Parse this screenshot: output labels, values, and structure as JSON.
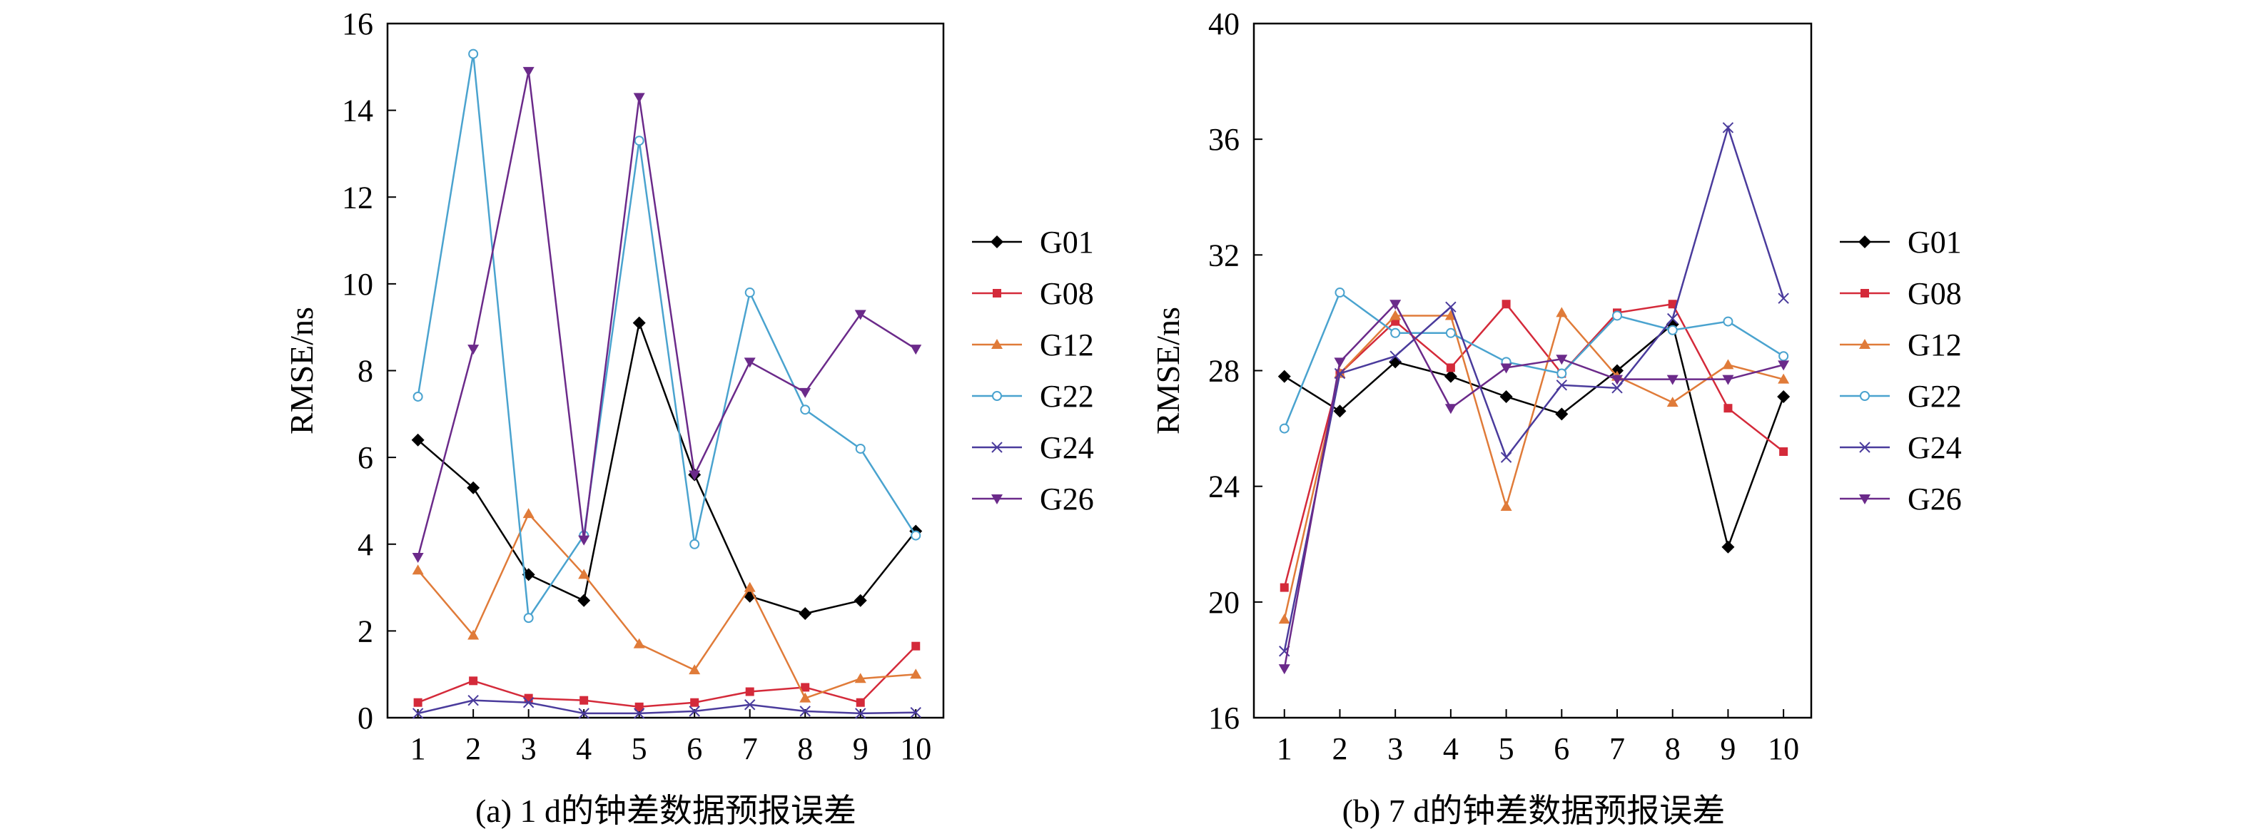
{
  "figure": {
    "panels": [
      {
        "caption": "(a) 1 d的钟差数据预报误差"
      },
      {
        "caption": "(b) 7 d的钟差数据预报误差"
      }
    ]
  },
  "colors": {
    "G01": "#000000",
    "G08": "#d42a3a",
    "G12": "#e07b39",
    "G22": "#4aa3cf",
    "G24": "#4a3b9c",
    "G26": "#6b2a8a"
  },
  "chart_data": [
    {
      "type": "line",
      "title": "(a) 1 d的钟差数据预报误差",
      "xlabel": "",
      "ylabel": "RMSE/ns",
      "ylim": [
        0,
        16
      ],
      "yticks": [
        0,
        2,
        4,
        6,
        8,
        10,
        12,
        14,
        16
      ],
      "categories": [
        "1",
        "2",
        "3",
        "4",
        "5",
        "6",
        "7",
        "8",
        "9",
        "10"
      ],
      "legend_position": "right",
      "grid": false,
      "series": [
        {
          "name": "G01",
          "marker": "diamond",
          "values": [
            6.4,
            5.3,
            3.3,
            2.7,
            9.1,
            5.6,
            2.8,
            2.4,
            2.7,
            4.3
          ]
        },
        {
          "name": "G08",
          "marker": "square",
          "values": [
            0.35,
            0.85,
            0.45,
            0.4,
            0.25,
            0.35,
            0.6,
            0.7,
            0.35,
            1.65
          ]
        },
        {
          "name": "G12",
          "marker": "triangle",
          "values": [
            3.4,
            1.9,
            4.7,
            3.3,
            1.7,
            1.1,
            3.0,
            0.45,
            0.9,
            1.0
          ]
        },
        {
          "name": "G22",
          "marker": "circle",
          "values": [
            7.4,
            15.3,
            2.3,
            4.2,
            13.3,
            4.0,
            9.8,
            7.1,
            6.2,
            4.2
          ]
        },
        {
          "name": "G24",
          "marker": "x",
          "values": [
            0.1,
            0.4,
            0.35,
            0.1,
            0.1,
            0.15,
            0.3,
            0.15,
            0.1,
            0.12
          ]
        },
        {
          "name": "G26",
          "marker": "triangle-down",
          "values": [
            3.7,
            8.5,
            14.9,
            4.1,
            14.3,
            5.6,
            8.2,
            7.5,
            9.3,
            8.5
          ]
        }
      ]
    },
    {
      "type": "line",
      "title": "(b) 7 d的钟差数据预报误差",
      "xlabel": "",
      "ylabel": "RMSE/ns",
      "ylim": [
        16,
        40
      ],
      "yticks": [
        16,
        20,
        24,
        28,
        32,
        36,
        40
      ],
      "categories": [
        "1",
        "2",
        "3",
        "4",
        "5",
        "6",
        "7",
        "8",
        "9",
        "10"
      ],
      "legend_position": "right",
      "grid": false,
      "series": [
        {
          "name": "G01",
          "marker": "diamond",
          "values": [
            27.8,
            26.6,
            28.3,
            27.8,
            27.1,
            26.5,
            28.0,
            29.6,
            21.9,
            27.1
          ]
        },
        {
          "name": "G08",
          "marker": "square",
          "values": [
            20.5,
            27.9,
            29.7,
            28.1,
            30.3,
            27.9,
            30.0,
            30.3,
            26.7,
            25.2
          ]
        },
        {
          "name": "G12",
          "marker": "triangle",
          "values": [
            19.4,
            27.9,
            29.9,
            29.9,
            23.3,
            30.0,
            27.8,
            26.9,
            28.2,
            27.7
          ]
        },
        {
          "name": "G22",
          "marker": "circle",
          "values": [
            26.0,
            30.7,
            29.3,
            29.3,
            28.3,
            27.9,
            29.9,
            29.4,
            29.7,
            28.5
          ]
        },
        {
          "name": "G24",
          "marker": "x",
          "values": [
            18.3,
            27.9,
            28.5,
            30.2,
            25.0,
            27.5,
            27.4,
            29.8,
            36.4,
            30.5
          ]
        },
        {
          "name": "G26",
          "marker": "triangle-down",
          "values": [
            17.7,
            28.3,
            30.3,
            26.7,
            28.1,
            28.4,
            27.7,
            27.7,
            27.7,
            28.2
          ]
        }
      ]
    }
  ]
}
